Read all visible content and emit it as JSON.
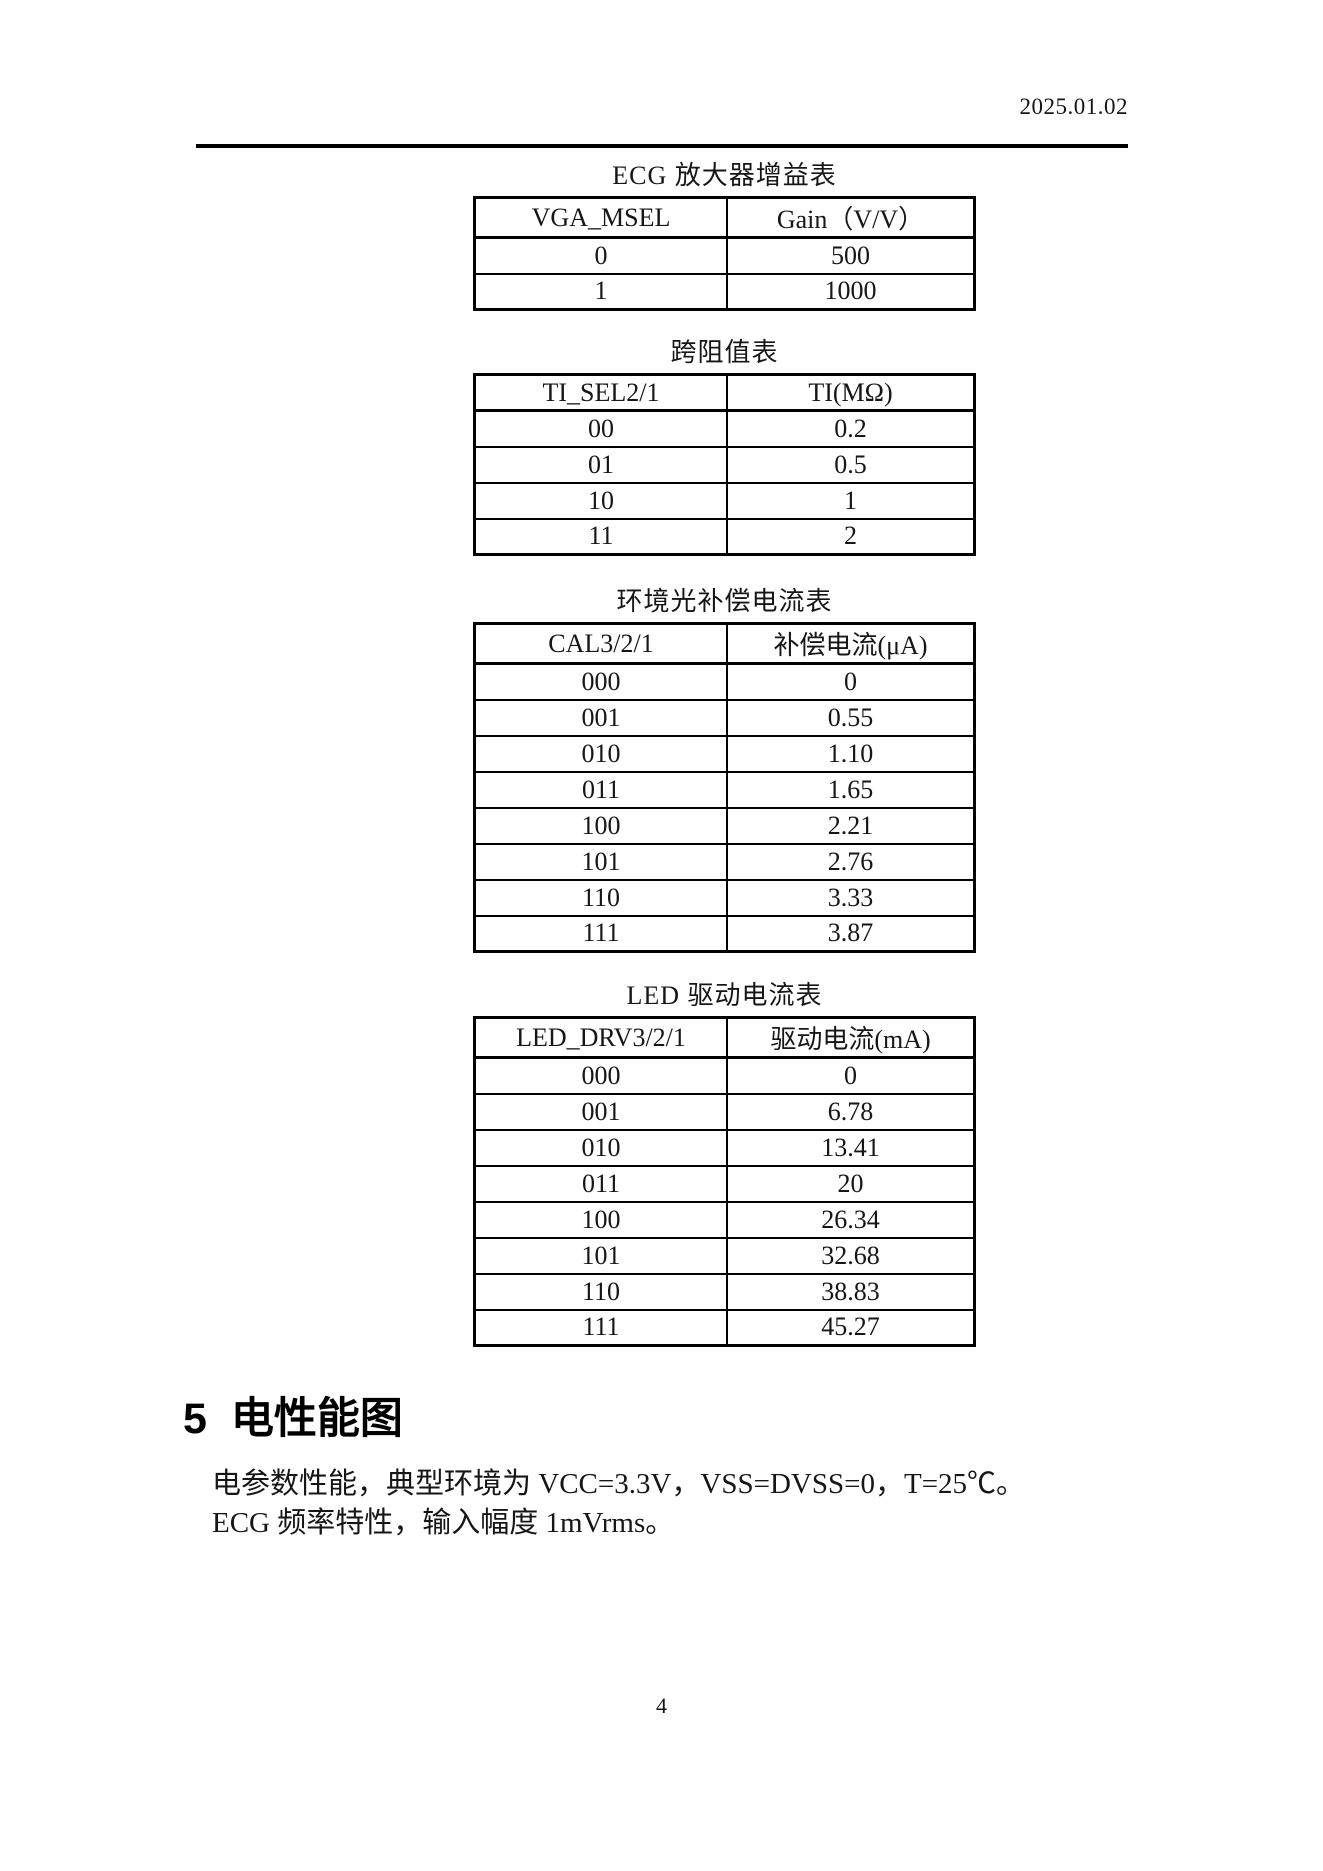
{
  "page": {
    "date": "2025.01.02",
    "page_number": "4"
  },
  "tables": [
    {
      "title": "ECG 放大器增益表",
      "col1": "VGA_MSEL",
      "col2": "Gain（V/V）",
      "rows": [
        [
          "0",
          "500"
        ],
        [
          "1",
          "1000"
        ]
      ]
    },
    {
      "title": "跨阻值表",
      "col1": "TI_SEL2/1",
      "col2": "TI(MΩ)",
      "rows": [
        [
          "00",
          "0.2"
        ],
        [
          "01",
          "0.5"
        ],
        [
          "10",
          "1"
        ],
        [
          "11",
          "2"
        ]
      ]
    },
    {
      "title": "环境光补偿电流表",
      "col1": "CAL3/2/1",
      "col2": "补偿电流(μA)",
      "rows": [
        [
          "000",
          "0"
        ],
        [
          "001",
          "0.55"
        ],
        [
          "010",
          "1.10"
        ],
        [
          "011",
          "1.65"
        ],
        [
          "100",
          "2.21"
        ],
        [
          "101",
          "2.76"
        ],
        [
          "110",
          "3.33"
        ],
        [
          "111",
          "3.87"
        ]
      ]
    },
    {
      "title": "LED 驱动电流表",
      "col1": "LED_DRV3/2/1",
      "col2": "驱动电流(mA)",
      "rows": [
        [
          "000",
          "0"
        ],
        [
          "001",
          "6.78"
        ],
        [
          "010",
          "13.41"
        ],
        [
          "011",
          "20"
        ],
        [
          "100",
          "26.34"
        ],
        [
          "101",
          "32.68"
        ],
        [
          "110",
          "38.83"
        ],
        [
          "111",
          "45.27"
        ]
      ]
    }
  ],
  "section": {
    "heading_number": "5",
    "heading_text": "电性能图",
    "paragraph_line1": "电参数性能，典型环境为 VCC=3.3V，VSS=DVSS=0，T=25℃。",
    "paragraph_line2": "ECG 频率特性，输入幅度 1mVrms。"
  }
}
